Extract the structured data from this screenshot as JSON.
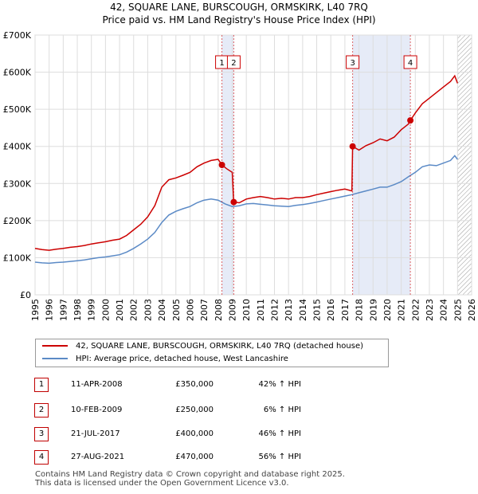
{
  "chart_data": {
    "type": "line",
    "title": "42, SQUARE LANE, BURSCOUGH, ORMSKIRK, L40 7RQ",
    "subtitle": "Price paid vs. HM Land Registry's House Price Index (HPI)",
    "xlabel": "",
    "ylabel": "",
    "xlim": [
      1995,
      2026
    ],
    "ylim": [
      0,
      700000
    ],
    "x_ticks": [
      "1995",
      "1996",
      "1997",
      "1998",
      "1999",
      "2000",
      "2001",
      "2002",
      "2003",
      "2004",
      "2005",
      "2006",
      "2007",
      "2008",
      "2009",
      "2010",
      "2011",
      "2012",
      "2013",
      "2014",
      "2015",
      "2016",
      "2017",
      "2018",
      "2019",
      "2020",
      "2021",
      "2022",
      "2023",
      "2024",
      "2025",
      "2026"
    ],
    "y_ticks": [
      {
        "value": 0,
        "label": "£0"
      },
      {
        "value": 100000,
        "label": "£100K"
      },
      {
        "value": 200000,
        "label": "£200K"
      },
      {
        "value": 300000,
        "label": "£300K"
      },
      {
        "value": 400000,
        "label": "£400K"
      },
      {
        "value": 500000,
        "label": "£500K"
      },
      {
        "value": 600000,
        "label": "£600K"
      },
      {
        "value": 700000,
        "label": "£700K"
      }
    ],
    "grid": true,
    "shaded_ranges": [
      {
        "from": 2008.27,
        "to": 2009.11
      },
      {
        "from": 2017.55,
        "to": 2021.65
      }
    ],
    "hatched_from": 2025.0,
    "series": [
      {
        "name": "42, SQUARE LANE, BURSCOUGH, ORMSKIRK, L40 7RQ (detached house)",
        "color": "#cc0000",
        "x": [
          1995.0,
          1995.5,
          1996.0,
          1996.5,
          1997.0,
          1997.5,
          1998.0,
          1998.5,
          1999.0,
          1999.5,
          2000.0,
          2000.5,
          2001.0,
          2001.5,
          2002.0,
          2002.5,
          2003.0,
          2003.5,
          2004.0,
          2004.5,
          2005.0,
          2005.5,
          2006.0,
          2006.5,
          2007.0,
          2007.5,
          2008.0,
          2008.27,
          2008.6,
          2009.0,
          2009.11,
          2009.5,
          2010.0,
          2010.5,
          2011.0,
          2011.5,
          2012.0,
          2012.5,
          2013.0,
          2013.5,
          2014.0,
          2014.5,
          2015.0,
          2015.5,
          2016.0,
          2016.5,
          2017.0,
          2017.5,
          2017.55,
          2018.0,
          2018.5,
          2019.0,
          2019.5,
          2020.0,
          2020.5,
          2021.0,
          2021.5,
          2021.65,
          2022.0,
          2022.5,
          2023.0,
          2023.5,
          2024.0,
          2024.5,
          2024.8,
          2025.0
        ],
        "values": [
          125000,
          122000,
          120000,
          123000,
          125000,
          128000,
          130000,
          133000,
          137000,
          140000,
          143000,
          147000,
          150000,
          160000,
          175000,
          190000,
          210000,
          240000,
          290000,
          310000,
          315000,
          322000,
          330000,
          345000,
          355000,
          362000,
          365000,
          350000,
          340000,
          330000,
          250000,
          248000,
          258000,
          262000,
          265000,
          262000,
          258000,
          260000,
          258000,
          262000,
          262000,
          265000,
          270000,
          274000,
          278000,
          282000,
          285000,
          280000,
          400000,
          390000,
          402000,
          410000,
          420000,
          415000,
          425000,
          445000,
          460000,
          470000,
          490000,
          515000,
          530000,
          545000,
          560000,
          575000,
          590000,
          570000
        ]
      },
      {
        "name": "HPI: Average price, detached house, West Lancashire",
        "color": "#5b8ac6",
        "x": [
          1995.0,
          1995.5,
          1996.0,
          1996.5,
          1997.0,
          1997.5,
          1998.0,
          1998.5,
          1999.0,
          1999.5,
          2000.0,
          2000.5,
          2001.0,
          2001.5,
          2002.0,
          2002.5,
          2003.0,
          2003.5,
          2004.0,
          2004.5,
          2005.0,
          2005.5,
          2006.0,
          2006.5,
          2007.0,
          2007.5,
          2008.0,
          2008.5,
          2009.0,
          2009.5,
          2010.0,
          2010.5,
          2011.0,
          2011.5,
          2012.0,
          2012.5,
          2013.0,
          2013.5,
          2014.0,
          2014.5,
          2015.0,
          2015.5,
          2016.0,
          2016.5,
          2017.0,
          2017.5,
          2018.0,
          2018.5,
          2019.0,
          2019.5,
          2020.0,
          2020.5,
          2021.0,
          2021.5,
          2022.0,
          2022.5,
          2023.0,
          2023.5,
          2024.0,
          2024.5,
          2024.8,
          2025.0
        ],
        "values": [
          88000,
          86000,
          85000,
          87000,
          88000,
          90000,
          92000,
          94000,
          97000,
          100000,
          102000,
          105000,
          108000,
          115000,
          125000,
          137000,
          150000,
          168000,
          195000,
          215000,
          225000,
          232000,
          238000,
          248000,
          255000,
          258000,
          255000,
          245000,
          238000,
          240000,
          245000,
          246000,
          244000,
          242000,
          240000,
          239000,
          238000,
          241000,
          243000,
          246000,
          250000,
          254000,
          258000,
          262000,
          266000,
          270000,
          275000,
          280000,
          285000,
          290000,
          290000,
          297000,
          305000,
          318000,
          330000,
          345000,
          350000,
          348000,
          355000,
          362000,
          375000,
          365000
        ]
      }
    ],
    "markers": [
      {
        "label": "1",
        "x": 2008.27,
        "y": 350000
      },
      {
        "label": "2",
        "x": 2009.11,
        "y": 250000
      },
      {
        "label": "3",
        "x": 2017.55,
        "y": 400000
      },
      {
        "label": "4",
        "x": 2021.65,
        "y": 470000
      }
    ]
  },
  "legend": {
    "property_label": "42, SQUARE LANE, BURSCOUGH, ORMSKIRK, L40 7RQ (detached house)",
    "hpi_label": "HPI: Average price, detached house, West Lancashire"
  },
  "transactions": [
    {
      "num": "1",
      "date": "11-APR-2008",
      "price": "£350,000",
      "hpi": "42% ↑ HPI"
    },
    {
      "num": "2",
      "date": "10-FEB-2009",
      "price": "£250,000",
      "hpi": "6% ↑ HPI"
    },
    {
      "num": "3",
      "date": "21-JUL-2017",
      "price": "£400,000",
      "hpi": "46% ↑ HPI"
    },
    {
      "num": "4",
      "date": "27-AUG-2021",
      "price": "£470,000",
      "hpi": "56% ↑ HPI"
    }
  ],
  "footer": {
    "line1": "Contains HM Land Registry data © Crown copyright and database right 2025.",
    "line2": "This data is licensed under the Open Government Licence v3.0."
  }
}
